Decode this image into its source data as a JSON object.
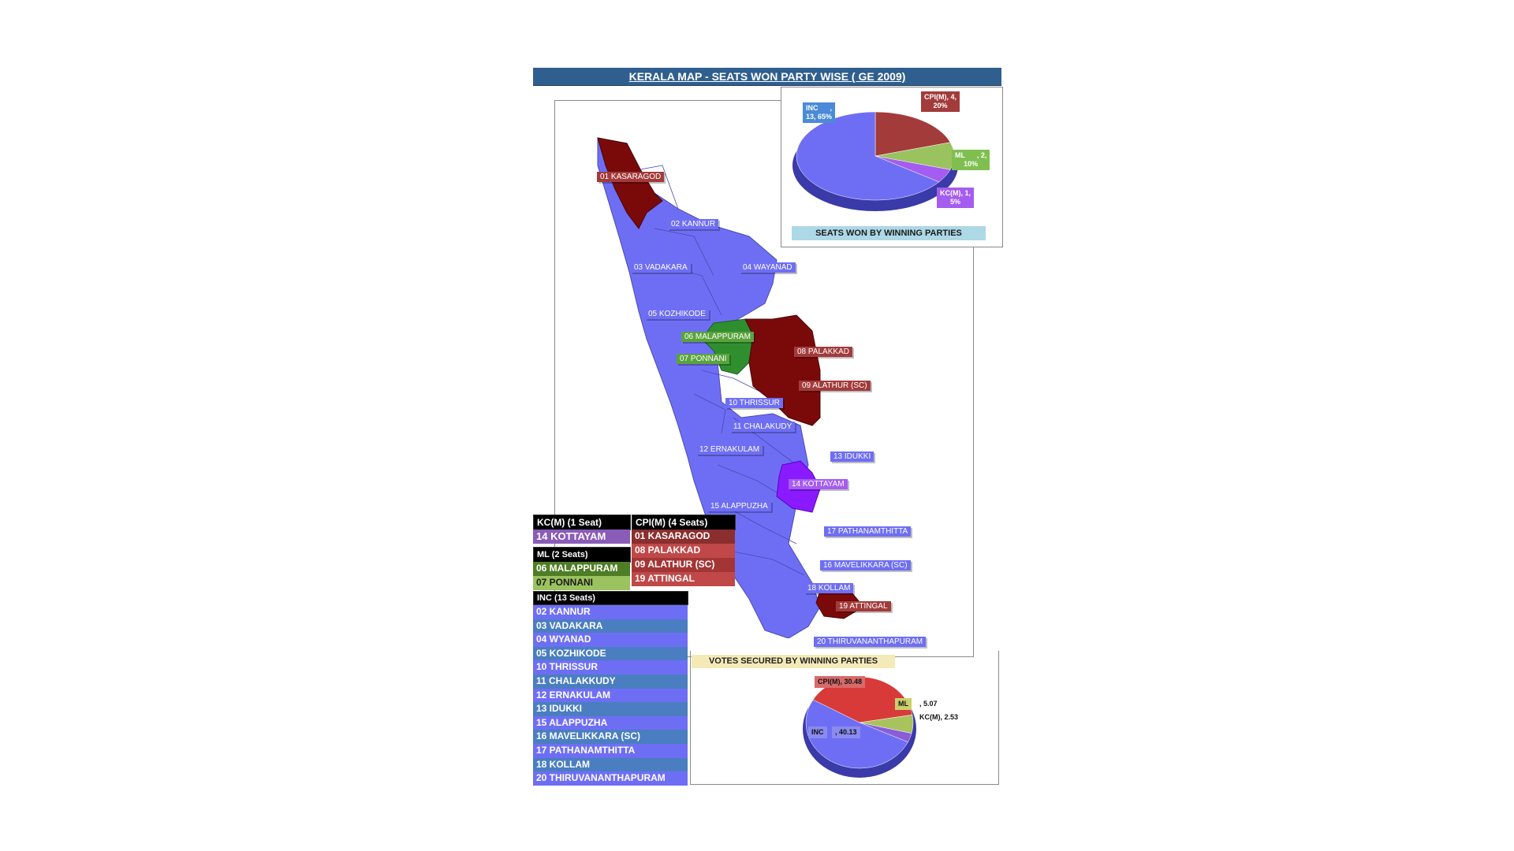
{
  "title": "KERALA MAP -  SEATS WON PARTY WISE ( GE 2009)",
  "colors": {
    "INC": "#6e6ef5",
    "CPI(M)": "#a33b3b",
    "ML": "#5aa33e",
    "KC(M)": "#a55cf0",
    "map_cpi": "#7a0a0a",
    "map_ml": "#2f8f2f",
    "map_kcm": "#8a1aff"
  },
  "map_labels": {
    "l01": "01 KASARAGOD",
    "l02": "02 KANNUR",
    "l03": "03 VADAKARA",
    "l04": "04 WAYANAD",
    "l05": "05 KOZHIKODE",
    "l06": "06 MALAPPURAM",
    "l07": "07 PONNANI",
    "l08": "08 PALAKKAD",
    "l09": "09 ALATHUR (SC)",
    "l10": "10 THRISSUR",
    "l11": "11 CHALAKUDY",
    "l12": "12 ERNAKULAM",
    "l13": "13 IDUKKI",
    "l14": "14 KOTTAYAM",
    "l15": "15 ALAPPUZHA",
    "l16": "16 MAVELIKKARA (SC)",
    "l17": "17 PATHANAMTHITTA",
    "l18": "18 KOLLAM",
    "l19": "19 ATTINGAL",
    "l20": "20 THIRUVANANTHAPURAM"
  },
  "seats_chart": {
    "caption": "SEATS WON BY WINNING PARTIES",
    "labels": {
      "inc": "INC      ,\n13, 65%",
      "cpi": "CPI(M), 4,\n20%",
      "ml": "ML      , 2,\n10%",
      "kcm": "KC(M), 1,\n5%"
    }
  },
  "votes_chart": {
    "caption": "VOTES SECURED BY WINNING PARTIES",
    "labels": {
      "cpi": "CPI(M), 30.48",
      "ml": "ML",
      "ml_val": ", 5.07",
      "kcm": "KC(M), 2.53",
      "inc": "INC",
      "inc_val": ", 40.13"
    }
  },
  "legend": {
    "kcm": {
      "header": "KC(M) (1 Seat)",
      "items": [
        "14 KOTTAYAM"
      ]
    },
    "cpi": {
      "header": "CPI(M) (4 Seats)",
      "items": [
        "01 KASARAGOD",
        "08 PALAKKAD",
        "09 ALATHUR (SC)",
        "19 ATTINGAL"
      ]
    },
    "ml": {
      "header": "ML (2 Seats)",
      "items": [
        "06 MALAPPURAM",
        "07 PONNANI"
      ]
    },
    "inc": {
      "header": "INC (13 Seats)",
      "items": [
        "02 KANNUR",
        "03 VADAKARA",
        "04 WYANAD",
        "05 KOZHIKODE",
        "10 THRISSUR",
        "11 CHALAKKUDY",
        "12 ERNAKULAM",
        "13 IDUKKI",
        "15 ALAPPUZHA",
        "16 MAVELIKKARA (SC)",
        "17 PATHANAMTHITTA",
        "18 KOLLAM",
        "20 THIRUVANANTHAPURAM"
      ]
    }
  },
  "chart_data": [
    {
      "type": "pie",
      "title": "SEATS WON BY WINNING PARTIES",
      "categories": [
        "INC",
        "CPI(M)",
        "ML",
        "KC(M)"
      ],
      "values": [
        13,
        4,
        2,
        1
      ],
      "percent": [
        65,
        20,
        10,
        5
      ]
    },
    {
      "type": "pie",
      "title": "VOTES SECURED BY WINNING PARTIES",
      "categories": [
        "INC",
        "CPI(M)",
        "ML",
        "KC(M)"
      ],
      "values": [
        40.13,
        30.48,
        5.07,
        2.53
      ]
    }
  ]
}
